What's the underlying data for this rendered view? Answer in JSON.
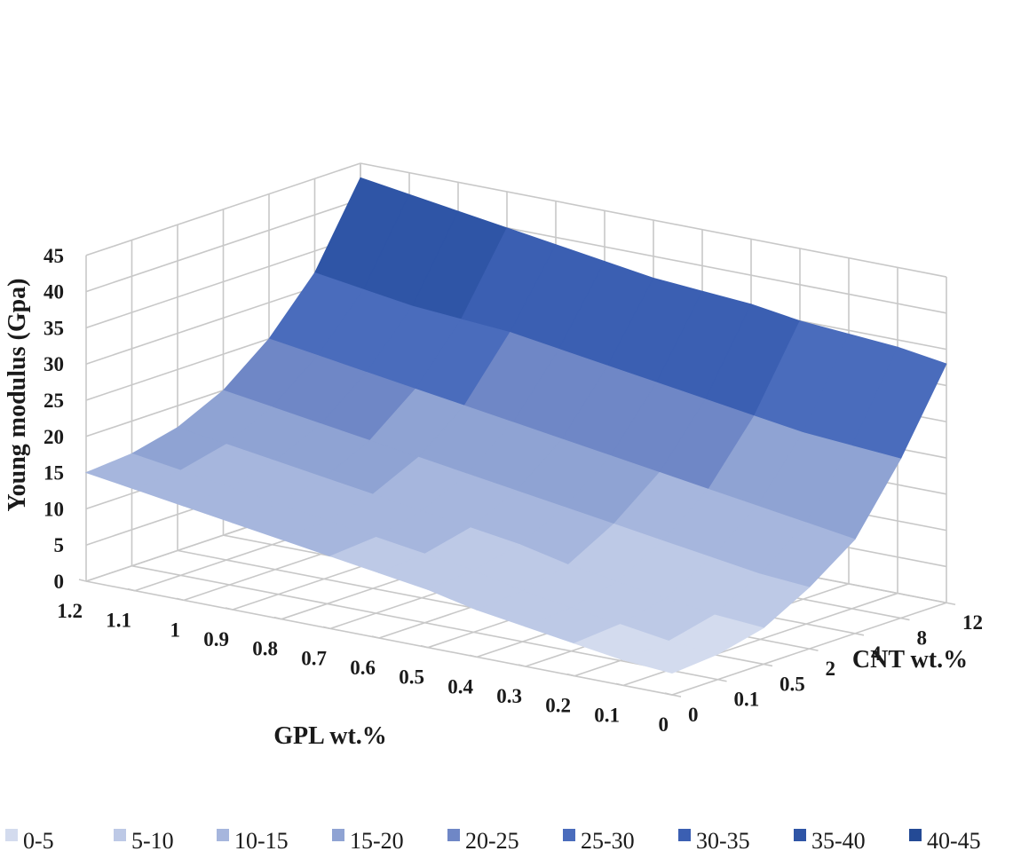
{
  "chart_data": {
    "type": "surface",
    "title": "",
    "zlabel": "Young modulus (Gpa)",
    "xlabel": "GPL wt.%",
    "ylabel": "CNT wt.%",
    "z_ticks": [
      "0",
      "5",
      "10",
      "15",
      "20",
      "25",
      "30",
      "35",
      "40",
      "45"
    ],
    "x_ticks": [
      "1.2",
      "1.1",
      "1",
      "0.9",
      "0.8",
      "0.7",
      "0.6",
      "0.5",
      "0.4",
      "0.3",
      "0.2",
      "0.1",
      "0"
    ],
    "y_ticks": [
      "0",
      "0.1",
      "0.5",
      "2",
      "4",
      "8",
      "12"
    ],
    "zlim": [
      0,
      45
    ],
    "grid": true,
    "legend_position": "bottom",
    "colors": [
      "#d3dbee",
      "#bdc9e6",
      "#a6b6dd",
      "#8fa3d3",
      "#6f87c6",
      "#4a6cbc",
      "#3b5fb2",
      "#2f55a6",
      "#244a95"
    ],
    "legend": [
      "0-5",
      "5-10",
      "10-15",
      "15-20",
      "20-25",
      "25-30",
      "30-35",
      "35-40",
      "40-45"
    ],
    "bands": [
      "0-5",
      "5-10",
      "10-15",
      "15-20",
      "20-25",
      "25-30",
      "30-35",
      "35-40",
      "40-45"
    ],
    "series": [
      {
        "cnt": "0",
        "values": [
          15,
          14,
          13,
          12,
          11,
          10,
          9,
          8,
          6.5,
          5.5,
          4.5,
          3.5,
          3
        ]
      },
      {
        "cnt": "0.1",
        "values": [
          15.5,
          14.5,
          13.5,
          12.5,
          11.5,
          10.5,
          9.5,
          8.5,
          7,
          6,
          5,
          4,
          3.5
        ]
      },
      {
        "cnt": "0.5",
        "values": [
          17,
          16,
          15,
          14,
          13,
          12,
          11,
          10,
          8.5,
          7.5,
          6.5,
          5.5,
          5
        ]
      },
      {
        "cnt": "2",
        "values": [
          20,
          19,
          18,
          17,
          16,
          15,
          14,
          13,
          12,
          11,
          10,
          9,
          8.5
        ]
      },
      {
        "cnt": "4",
        "values": [
          25,
          24,
          23,
          22,
          21,
          20,
          19,
          18,
          17,
          16,
          15,
          14,
          13
        ]
      },
      {
        "cnt": "8",
        "values": [
          32,
          31,
          30,
          29.5,
          29,
          28,
          27,
          26,
          25,
          24,
          23,
          22.5,
          22
        ]
      },
      {
        "cnt": "12",
        "values": [
          43,
          42,
          41,
          40,
          39,
          38,
          37,
          36.5,
          36,
          35,
          34.5,
          34,
          33
        ]
      }
    ]
  }
}
